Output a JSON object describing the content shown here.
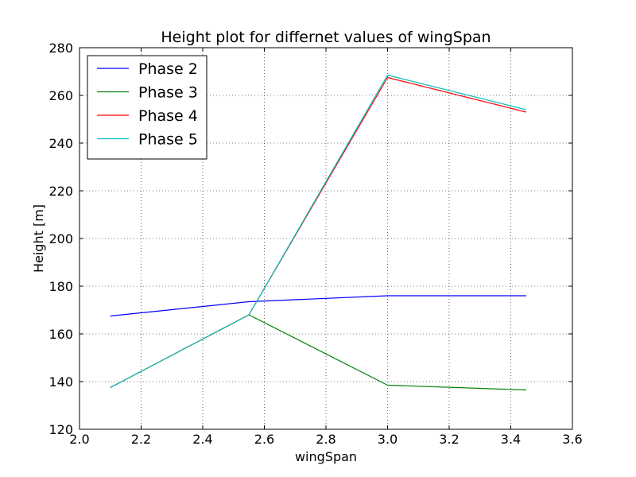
{
  "chart_data": {
    "type": "line",
    "title": "Height plot for differnet values of wingSpan",
    "xlabel": "wingSpan",
    "ylabel": "Height [m]",
    "xlim": [
      2.0,
      3.6
    ],
    "ylim": [
      120,
      280
    ],
    "x_ticks": [
      "2.0",
      "2.2",
      "2.4",
      "2.6",
      "2.8",
      "3.0",
      "3.2",
      "3.4",
      "3.6"
    ],
    "y_ticks": [
      "120",
      "140",
      "160",
      "180",
      "200",
      "220",
      "240",
      "260",
      "280"
    ],
    "grid": true,
    "legend_position": "top-left",
    "x": [
      2.1,
      2.55,
      3.0,
      3.45
    ],
    "series": [
      {
        "name": "Phase 2",
        "color": "#0000ff",
        "values": [
          167.5,
          173.5,
          176.0,
          176.0
        ]
      },
      {
        "name": "Phase 3",
        "color": "#008000",
        "values": [
          137.5,
          168.0,
          138.5,
          136.5
        ]
      },
      {
        "name": "Phase 4",
        "color": "#ff0000",
        "values": [
          137.5,
          168.0,
          267.5,
          253.0
        ]
      },
      {
        "name": "Phase 5",
        "color": "#00bfbf",
        "values": [
          137.5,
          168.0,
          268.5,
          254.0
        ]
      }
    ]
  }
}
